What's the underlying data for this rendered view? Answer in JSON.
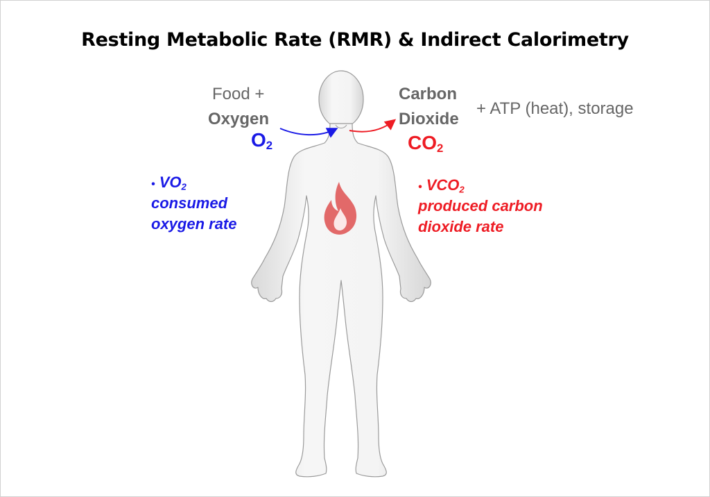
{
  "title": "Resting Metabolic Rate (RMR) & Indirect Calorimetry",
  "inputs": {
    "line1": "Food +",
    "line2": "Oxygen",
    "gas_main": "O",
    "gas_sub": "2"
  },
  "outputs": {
    "line1": "Carbon",
    "line2": "Dioxide",
    "gas_main": "CO",
    "gas_sub": "2",
    "extra": "+ ATP (heat), storage"
  },
  "vo2": {
    "bullet": "•",
    "label_main": "VO",
    "label_sub": "2",
    "line2": "consumed",
    "line3": "oxygen rate"
  },
  "vco2": {
    "bullet": "•",
    "label_main": "VCO",
    "label_sub": "2",
    "line2": "produced carbon",
    "line3": "dioxide rate"
  },
  "icons": {
    "body": "human-body-icon",
    "flame": "flame-icon"
  },
  "colors": {
    "oxygen": "#1a1ae6",
    "carbon_dioxide": "#ee1c24",
    "flame": "#e05a5a",
    "body": "#ececec"
  }
}
